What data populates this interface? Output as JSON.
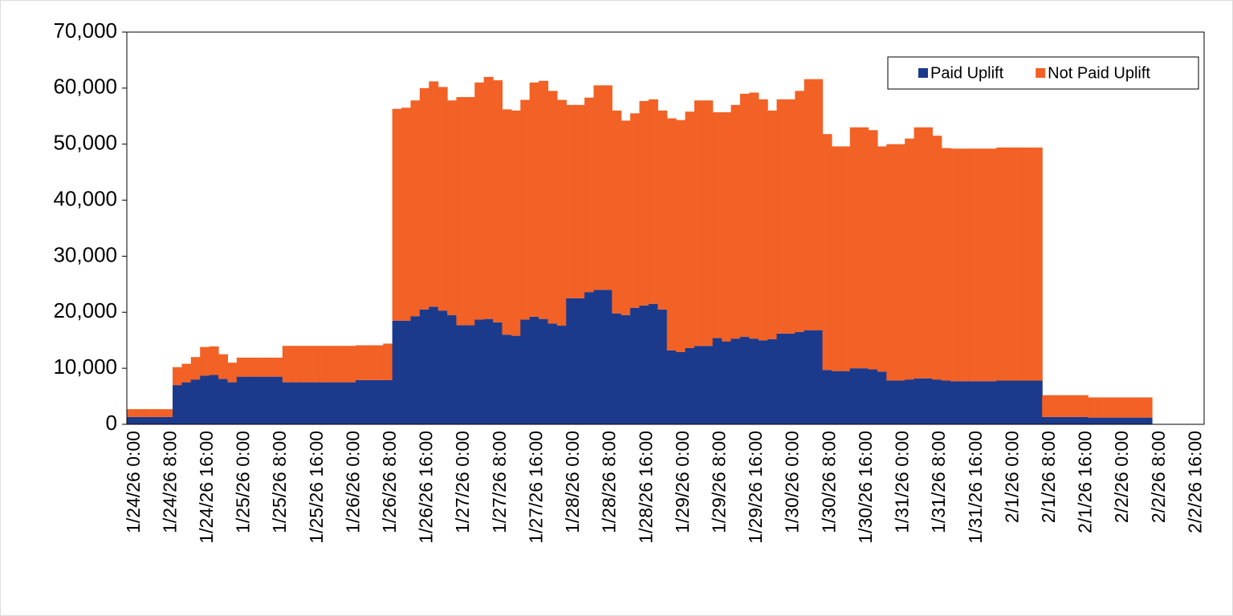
{
  "chart_data": {
    "type": "stacked-bar",
    "categories": [
      "1/24/26 0:00",
      null,
      null,
      null,
      "1/24/26 8:00",
      null,
      null,
      null,
      "1/24/26 16:00",
      null,
      null,
      null,
      "1/25/26 0:00",
      null,
      null,
      null,
      "1/25/26 8:00",
      null,
      null,
      null,
      "1/25/26 16:00",
      null,
      null,
      null,
      "1/26/26 0:00",
      null,
      null,
      null,
      "1/26/26 8:00",
      null,
      null,
      null,
      "1/26/26 16:00",
      null,
      null,
      null,
      "1/27/26 0:00",
      null,
      null,
      null,
      "1/27/26 8:00",
      null,
      null,
      null,
      "1/27/26 16:00",
      null,
      null,
      null,
      "1/28/26 0:00",
      null,
      null,
      null,
      "1/28/26 8:00",
      null,
      null,
      null,
      "1/28/26 16:00",
      null,
      null,
      null,
      "1/29/26 0:00",
      null,
      null,
      null,
      "1/29/26 8:00",
      null,
      null,
      null,
      "1/29/26 16:00",
      null,
      null,
      null,
      "1/30/26 0:00",
      null,
      null,
      null,
      "1/30/26 8:00",
      null,
      null,
      null,
      "1/30/26 16:00",
      null,
      null,
      null,
      "1/31/26 0:00",
      null,
      null,
      null,
      "1/31/26 8:00",
      null,
      null,
      null,
      "1/31/26 16:00",
      null,
      null,
      null,
      "2/1/26 0:00",
      null,
      null,
      null,
      "2/1/26 8:00",
      null,
      null,
      null,
      "2/1/26 16:00",
      null,
      null,
      null,
      "2/2/26 0:00",
      null,
      null,
      null,
      "2/2/26 8:00",
      null,
      null,
      null,
      "2/2/26 16:00"
    ],
    "series": [
      {
        "name": "Paid Uplift",
        "color": "#1c3a8c",
        "values": [
          1300,
          1300,
          1300,
          1300,
          1300,
          7000,
          7500,
          8000,
          8700,
          8800,
          8100,
          7500,
          8500,
          8500,
          8500,
          8500,
          8500,
          7500,
          7500,
          7500,
          7500,
          7500,
          7500,
          7500,
          7500,
          7900,
          7900,
          7900,
          7900,
          18500,
          18500,
          19300,
          20500,
          21000,
          20300,
          19500,
          17700,
          17700,
          18700,
          18800,
          18200,
          16000,
          15800,
          18700,
          19200,
          18800,
          18000,
          17600,
          22500,
          22500,
          23600,
          24000,
          24000,
          19800,
          19500,
          20800,
          21200,
          21500,
          20500,
          13200,
          12900,
          13600,
          14000,
          14000,
          15400,
          14800,
          15300,
          15600,
          15300,
          15000,
          15200,
          16200,
          16200,
          16500,
          16800,
          16800,
          9700,
          9500,
          9500,
          10000,
          10000,
          9800,
          9400,
          7800,
          7800,
          8000,
          8200,
          8200,
          8000,
          7800,
          7700,
          7700,
          7700,
          7700,
          7700,
          7800,
          7800,
          7800,
          7800,
          7800,
          1300,
          1300,
          1300,
          1300,
          1300,
          1200,
          1200,
          1200,
          1200,
          1200,
          1200,
          1200,
          null,
          null,
          null,
          null,
          null
        ]
      },
      {
        "name": "Not Paid Uplift",
        "color": "#f26125",
        "values": [
          1400,
          1400,
          1400,
          1400,
          1400,
          3200,
          3300,
          4000,
          5100,
          5100,
          4400,
          3500,
          3400,
          3400,
          3400,
          3400,
          3400,
          6500,
          6500,
          6500,
          6500,
          6500,
          6500,
          6500,
          6500,
          6200,
          6200,
          6200,
          6500,
          37800,
          38000,
          38500,
          39500,
          40200,
          39900,
          38300,
          40700,
          40700,
          42300,
          43200,
          43200,
          40200,
          40200,
          39200,
          41800,
          42500,
          41500,
          40300,
          34500,
          34500,
          34700,
          36500,
          36500,
          36200,
          34700,
          34700,
          36500,
          36500,
          35500,
          41400,
          41400,
          42200,
          43800,
          43800,
          40300,
          40900,
          41700,
          43400,
          43900,
          43000,
          40800,
          41800,
          41800,
          43000,
          44800,
          44800,
          42100,
          40100,
          40100,
          43000,
          43000,
          42700,
          40200,
          42200,
          42200,
          43000,
          44800,
          44800,
          43500,
          41500,
          41500,
          41500,
          41500,
          41500,
          41500,
          41600,
          41600,
          41600,
          41600,
          41600,
          3900,
          3900,
          3900,
          3900,
          3900,
          3600,
          3600,
          3600,
          3600,
          3600,
          3600,
          3600,
          null,
          null,
          null,
          null,
          null
        ]
      }
    ],
    "ylim": [
      0,
      70000
    ],
    "yticks": [
      0,
      {
        "value": 10000,
        "label": "10,000"
      },
      {
        "value": 20000,
        "label": "20,000"
      },
      {
        "value": 30000,
        "label": "30,000"
      },
      {
        "value": 40000,
        "label": "40,000"
      },
      {
        "value": 50000,
        "label": "50,000"
      },
      {
        "value": 60000,
        "label": "60,000"
      },
      {
        "value": 70000,
        "label": "70,000"
      }
    ],
    "grid": false,
    "legend": "top-right"
  }
}
